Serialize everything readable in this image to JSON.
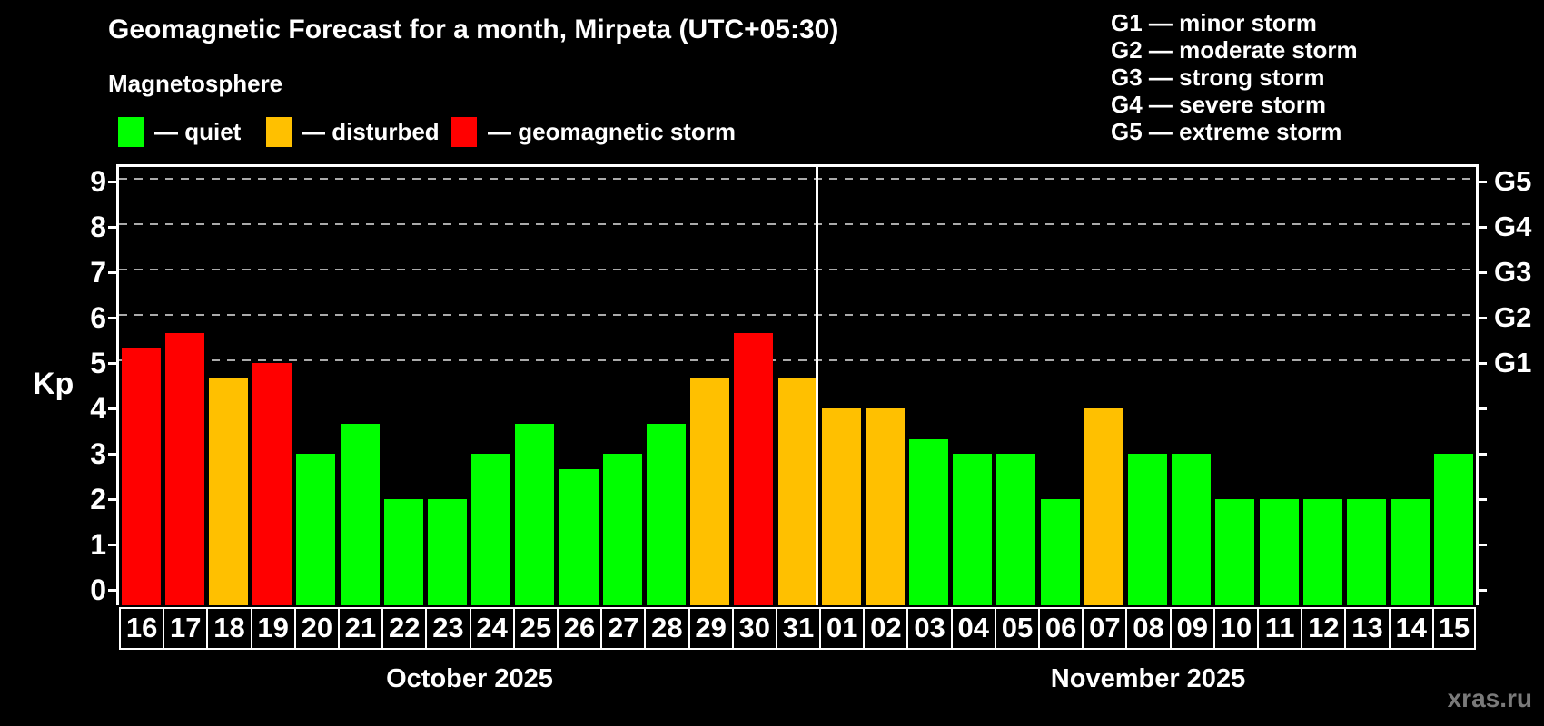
{
  "header": {
    "title": "Geomagnetic Forecast for a month, Mirpeta (UTC+05:30)",
    "subtitle": "Magnetosphere"
  },
  "legend": {
    "items": [
      {
        "name": "quiet",
        "label": "— quiet",
        "color": "#00ff00"
      },
      {
        "name": "disturbed",
        "label": "— disturbed",
        "color": "#ffc000"
      },
      {
        "name": "storm",
        "label": "— geomagnetic storm",
        "color": "#ff0000"
      }
    ]
  },
  "storm_scale": {
    "lines": [
      "G1 — minor storm",
      "G2 — moderate storm",
      "G3 — strong storm",
      "G4 — severe storm",
      "G5 — extreme storm"
    ]
  },
  "watermark": "xras.ru",
  "colors": {
    "background": "#000000",
    "axis": "#ffffff",
    "grid": "#aaaaaa",
    "quiet": "#00ff00",
    "disturbed": "#ffc000",
    "storm": "#ff0000",
    "watermark": "#7a7a7a"
  },
  "chart_data": {
    "type": "bar",
    "ylabel": "Kp",
    "ylim": [
      0,
      9
    ],
    "yticks": [
      0,
      1,
      2,
      3,
      4,
      5,
      6,
      7,
      8,
      9
    ],
    "grid_levels": [
      5,
      6,
      7,
      8,
      9
    ],
    "right_axis": [
      {
        "kp": 5,
        "label": "G1"
      },
      {
        "kp": 6,
        "label": "G2"
      },
      {
        "kp": 7,
        "label": "G3"
      },
      {
        "kp": 8,
        "label": "G4"
      },
      {
        "kp": 9,
        "label": "G5"
      }
    ],
    "months": [
      {
        "label": "October 2025",
        "day_count": 16
      },
      {
        "label": "November 2025",
        "day_count": 15
      }
    ],
    "categories": [
      "16",
      "17",
      "18",
      "19",
      "20",
      "21",
      "22",
      "23",
      "24",
      "25",
      "26",
      "27",
      "28",
      "29",
      "30",
      "31",
      "01",
      "02",
      "03",
      "04",
      "05",
      "06",
      "07",
      "08",
      "09",
      "10",
      "11",
      "12",
      "13",
      "14",
      "15"
    ],
    "values": [
      5.33,
      5.67,
      4.67,
      5.0,
      3.0,
      3.67,
      2.0,
      2.0,
      3.0,
      3.67,
      2.67,
      3.0,
      3.67,
      4.67,
      5.67,
      4.67,
      4.0,
      4.0,
      3.33,
      3.0,
      3.0,
      2.0,
      4.0,
      3.0,
      3.0,
      2.0,
      2.0,
      2.0,
      2.0,
      2.0,
      3.0
    ],
    "levels": [
      "storm",
      "storm",
      "disturbed",
      "storm",
      "quiet",
      "quiet",
      "quiet",
      "quiet",
      "quiet",
      "quiet",
      "quiet",
      "quiet",
      "quiet",
      "disturbed",
      "storm",
      "disturbed",
      "disturbed",
      "disturbed",
      "quiet",
      "quiet",
      "quiet",
      "quiet",
      "disturbed",
      "quiet",
      "quiet",
      "quiet",
      "quiet",
      "quiet",
      "quiet",
      "quiet",
      "quiet"
    ],
    "legend_position": "top-left",
    "grid_on": true
  }
}
